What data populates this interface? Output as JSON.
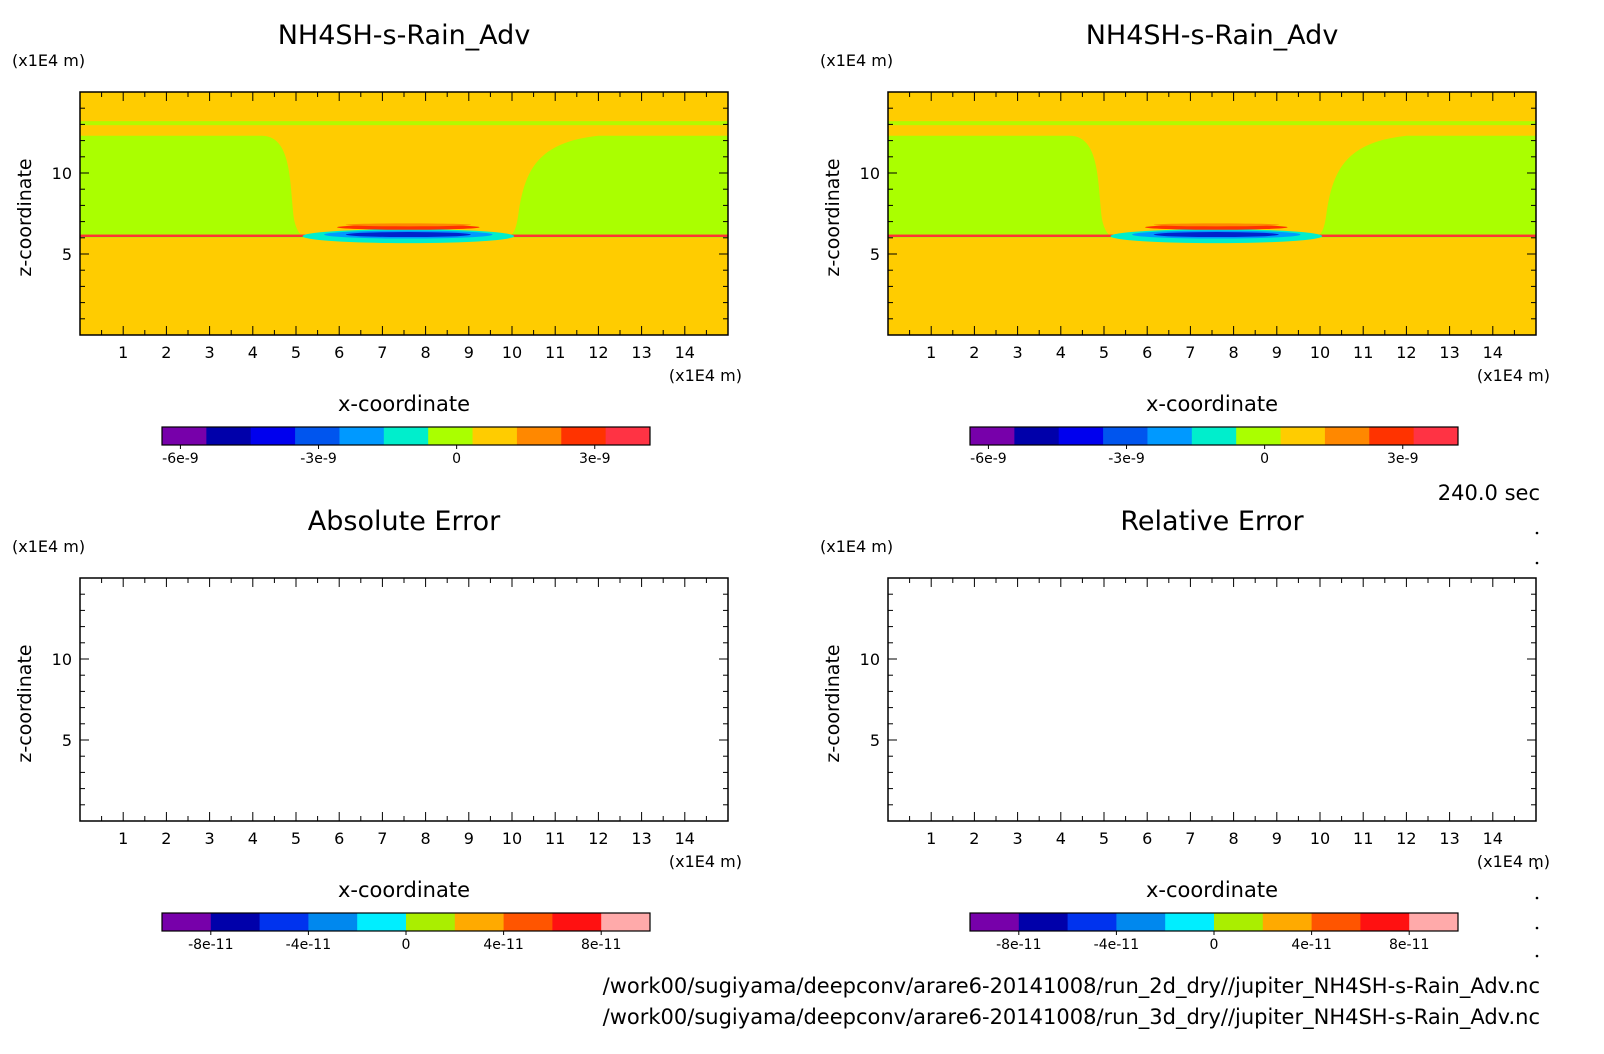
{
  "time_label": "240.0 sec",
  "footer": {
    "path_2d": "/work00/sugiyama/deepconv/arare6-20141008/run_2d_dry//jupiter_NH4SH-s-Rain_Adv.nc",
    "path_3d": "/work00/sugiyama/deepconv/arare6-20141008/run_3d_dry//jupiter_NH4SH-s-Rain_Adv.nc"
  },
  "colors": {
    "background_field": "#ffcc00",
    "green_band": "#aaff00",
    "red_layer": "#ff3333",
    "blue_core": "#0022cc",
    "frame": "#000000"
  },
  "chart_data": [
    {
      "type": "heatmap",
      "title": "NH4SH-s-Rain_Adv",
      "xlabel": "x-coordinate",
      "ylabel": "z-coordinate",
      "x_unit": "(x1E4 m)",
      "y_unit": "(x1E4 m)",
      "xlim": [
        0,
        15
      ],
      "ylim": [
        0,
        15
      ],
      "xticks": [
        "1",
        "2",
        "3",
        "4",
        "5",
        "6",
        "7",
        "8",
        "9",
        "10",
        "11",
        "12",
        "13",
        "14"
      ],
      "yticks": [
        "5",
        "10"
      ],
      "filled": true,
      "colorbar": {
        "colors": [
          "#7700aa",
          "#0000aa",
          "#0000ee",
          "#0055ee",
          "#0099ff",
          "#00eecc",
          "#aaff00",
          "#ffcc00",
          "#ff8800",
          "#ff3300",
          "#ff3344"
        ],
        "ticks": [
          "-6e-9",
          "-3e-9",
          "0",
          "3e-9"
        ],
        "tick_values": [
          -6e-09,
          -3e-09,
          0,
          3e-09
        ],
        "range": [
          -6.4e-09,
          4.2e-09
        ]
      }
    },
    {
      "type": "heatmap",
      "title": "NH4SH-s-Rain_Adv",
      "xlabel": "x-coordinate",
      "ylabel": "z-coordinate",
      "x_unit": "(x1E4 m)",
      "y_unit": "(x1E4 m)",
      "xlim": [
        0,
        15
      ],
      "ylim": [
        0,
        15
      ],
      "xticks": [
        "1",
        "2",
        "3",
        "4",
        "5",
        "6",
        "7",
        "8",
        "9",
        "10",
        "11",
        "12",
        "13",
        "14"
      ],
      "yticks": [
        "5",
        "10"
      ],
      "filled": true,
      "colorbar": {
        "colors": [
          "#7700aa",
          "#0000aa",
          "#0000ee",
          "#0055ee",
          "#0099ff",
          "#00eecc",
          "#aaff00",
          "#ffcc00",
          "#ff8800",
          "#ff3300",
          "#ff3344"
        ],
        "ticks": [
          "-6e-9",
          "-3e-9",
          "0",
          "3e-9"
        ],
        "tick_values": [
          -6e-09,
          -3e-09,
          0,
          3e-09
        ],
        "range": [
          -6.4e-09,
          4.2e-09
        ]
      }
    },
    {
      "type": "heatmap",
      "title": "Absolute Error",
      "xlabel": "x-coordinate",
      "ylabel": "z-coordinate",
      "x_unit": "(x1E4 m)",
      "y_unit": "(x1E4 m)",
      "xlim": [
        0,
        15
      ],
      "ylim": [
        0,
        15
      ],
      "xticks": [
        "1",
        "2",
        "3",
        "4",
        "5",
        "6",
        "7",
        "8",
        "9",
        "10",
        "11",
        "12",
        "13",
        "14"
      ],
      "yticks": [
        "5",
        "10"
      ],
      "filled": false,
      "colorbar": {
        "colors": [
          "#7700aa",
          "#0000aa",
          "#0033ee",
          "#0088ee",
          "#00eeff",
          "#aaee00",
          "#ffaa00",
          "#ff5500",
          "#ff1111",
          "#ffaaaa"
        ],
        "ticks": [
          "-8e-11",
          "-4e-11",
          "0",
          "4e-11",
          "8e-11"
        ],
        "tick_values": [
          -8e-11,
          -4e-11,
          0,
          4e-11,
          8e-11
        ],
        "range": [
          -1e-10,
          1e-10
        ]
      }
    },
    {
      "type": "heatmap",
      "title": "Relative Error",
      "xlabel": "x-coordinate",
      "ylabel": "z-coordinate",
      "x_unit": "(x1E4 m)",
      "y_unit": "(x1E4 m)",
      "xlim": [
        0,
        15
      ],
      "ylim": [
        0,
        15
      ],
      "xticks": [
        "1",
        "2",
        "3",
        "4",
        "5",
        "6",
        "7",
        "8",
        "9",
        "10",
        "11",
        "12",
        "13",
        "14"
      ],
      "yticks": [
        "5",
        "10"
      ],
      "filled": false,
      "colorbar": {
        "colors": [
          "#7700aa",
          "#0000aa",
          "#0033ee",
          "#0088ee",
          "#00eeff",
          "#aaee00",
          "#ffaa00",
          "#ff5500",
          "#ff1111",
          "#ffaaaa"
        ],
        "ticks": [
          "-8e-11",
          "-4e-11",
          "0",
          "4e-11",
          "8e-11"
        ],
        "tick_values": [
          -8e-11,
          -4e-11,
          0,
          4e-11,
          8e-11
        ],
        "range": [
          -1e-10,
          1e-10
        ]
      }
    }
  ]
}
